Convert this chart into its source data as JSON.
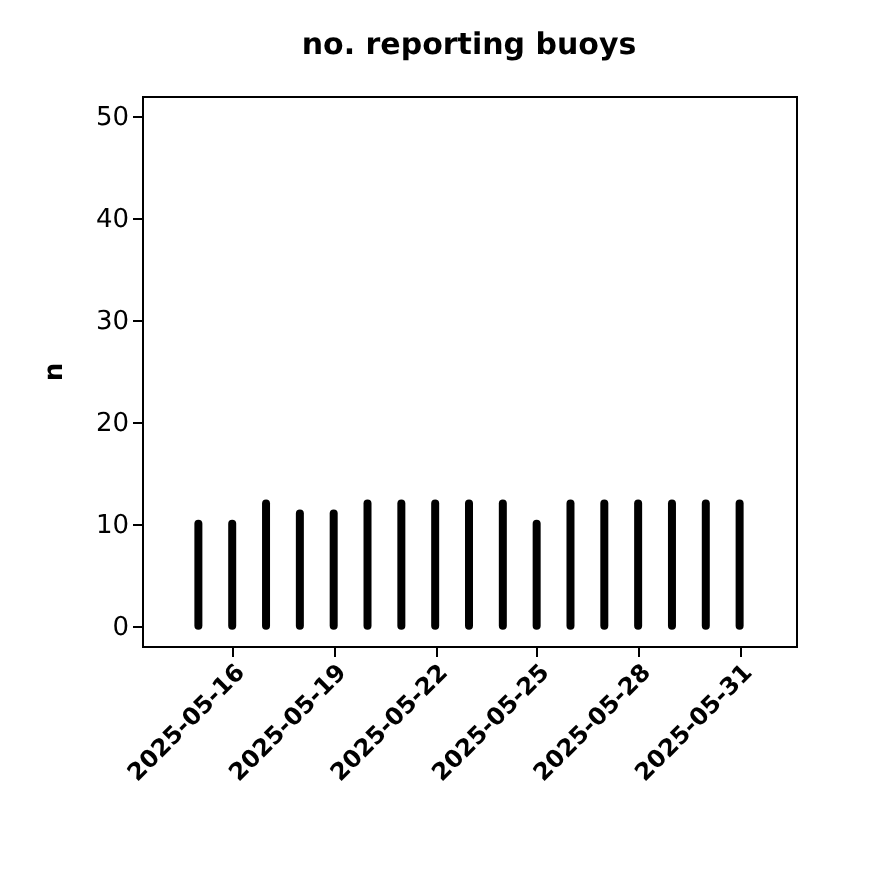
{
  "chart_data": {
    "type": "bar",
    "title": "no. reporting buoys",
    "ylabel": "n",
    "x": [
      "2025-05-15",
      "2025-05-16",
      "2025-05-17",
      "2025-05-18",
      "2025-05-19",
      "2025-05-20",
      "2025-05-21",
      "2025-05-22",
      "2025-05-23",
      "2025-05-24",
      "2025-05-25",
      "2025-05-26",
      "2025-05-27",
      "2025-05-28",
      "2025-05-29",
      "2025-05-30",
      "2025-05-31"
    ],
    "values": [
      10,
      10,
      12,
      11,
      11,
      12,
      12,
      12,
      12,
      12,
      10,
      12,
      12,
      12,
      12,
      12,
      12
    ],
    "color": "#000000",
    "xlim": [
      "2025-05-13T08:00",
      "2025-06-01T16:00"
    ],
    "xticks": [
      "2025-05-16",
      "2025-05-19",
      "2025-05-22",
      "2025-05-25",
      "2025-05-28",
      "2025-05-31"
    ],
    "ylim": [
      -2,
      52
    ],
    "yticks": [
      0,
      10,
      20,
      30,
      40,
      50
    ],
    "grid": false
  }
}
